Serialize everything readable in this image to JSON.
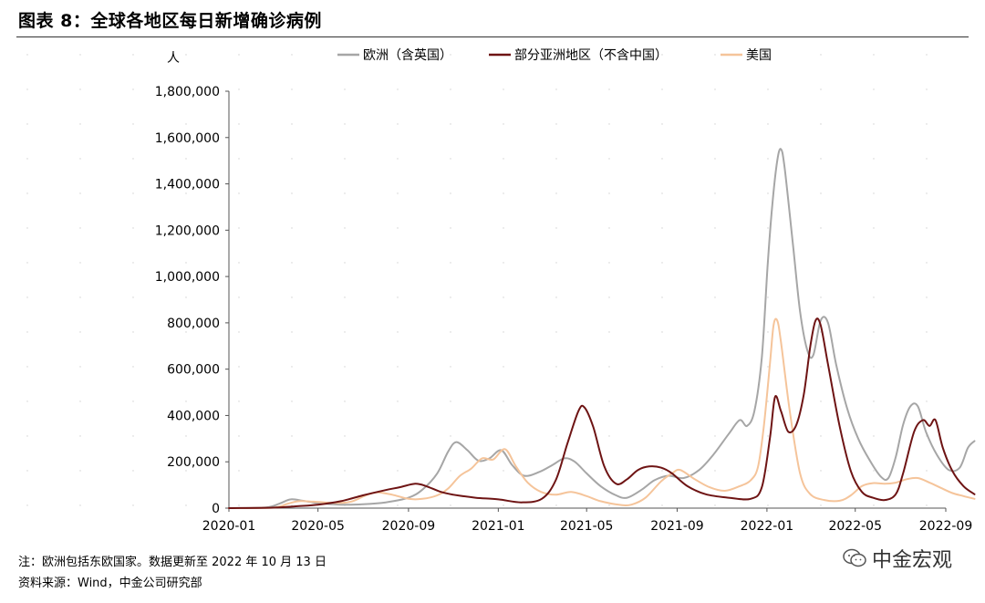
{
  "title": "图表 8：全球各地区每日新增确诊病例",
  "note": "注：欧洲包括东欧国家。数据更新至 2022 年 10 月 13 日",
  "source": "资料来源：Wind，中金公司研究部",
  "watermark": "中金宏观",
  "colors": {
    "europe": "#a6a6a6",
    "asia": "#6e1414",
    "us": "#f5c49a",
    "axis": "#555555"
  },
  "chart_data": {
    "type": "line",
    "ylabel": "人",
    "ylim": [
      0,
      1800000
    ],
    "y_ticks": [
      0,
      200000,
      400000,
      600000,
      800000,
      1000000,
      1200000,
      1400000,
      1600000,
      1800000
    ],
    "y_tick_labels": [
      "0",
      "200,000",
      "400,000",
      "600,000",
      "800,000",
      "1,000,000",
      "1,200,000",
      "1,400,000",
      "1,600,000",
      "1,800,000"
    ],
    "x_ticks": [
      "2020-01",
      "2020-05",
      "2020-09",
      "2021-01",
      "2021-05",
      "2021-09",
      "2022-01",
      "2022-05",
      "2022-09"
    ],
    "x_tick_dates": [
      "2020-01-01",
      "2020-05-01",
      "2020-09-01",
      "2021-01-01",
      "2021-05-01",
      "2021-09-01",
      "2022-01-01",
      "2022-05-01",
      "2022-09-01"
    ],
    "legend_position": "top",
    "series": [
      {
        "name": "欧洲（含英国）",
        "color": "#a6a6a6",
        "points": [
          [
            "2020-01-01",
            0
          ],
          [
            "2020-02-20",
            3000
          ],
          [
            "2020-03-10",
            20000
          ],
          [
            "2020-03-25",
            38000
          ],
          [
            "2020-04-10",
            32000
          ],
          [
            "2020-05-01",
            22000
          ],
          [
            "2020-06-01",
            15000
          ],
          [
            "2020-07-01",
            17000
          ],
          [
            "2020-08-01",
            25000
          ],
          [
            "2020-09-01",
            45000
          ],
          [
            "2020-09-20",
            80000
          ],
          [
            "2020-10-10",
            150000
          ],
          [
            "2020-10-25",
            245000
          ],
          [
            "2020-11-05",
            285000
          ],
          [
            "2020-11-20",
            250000
          ],
          [
            "2020-12-05",
            205000
          ],
          [
            "2020-12-20",
            215000
          ],
          [
            "2021-01-05",
            250000
          ],
          [
            "2021-01-20",
            185000
          ],
          [
            "2021-02-05",
            140000
          ],
          [
            "2021-02-25",
            155000
          ],
          [
            "2021-03-15",
            185000
          ],
          [
            "2021-04-01",
            215000
          ],
          [
            "2021-04-15",
            200000
          ],
          [
            "2021-05-01",
            150000
          ],
          [
            "2021-05-20",
            95000
          ],
          [
            "2021-06-10",
            55000
          ],
          [
            "2021-06-25",
            45000
          ],
          [
            "2021-07-15",
            80000
          ],
          [
            "2021-08-01",
            120000
          ],
          [
            "2021-08-20",
            140000
          ],
          [
            "2021-09-10",
            130000
          ],
          [
            "2021-10-01",
            165000
          ],
          [
            "2021-10-20",
            230000
          ],
          [
            "2021-11-10",
            320000
          ],
          [
            "2021-11-25",
            380000
          ],
          [
            "2021-12-05",
            355000
          ],
          [
            "2021-12-15",
            420000
          ],
          [
            "2021-12-25",
            650000
          ],
          [
            "2022-01-02",
            1050000
          ],
          [
            "2022-01-08",
            1300000
          ],
          [
            "2022-01-15",
            1500000
          ],
          [
            "2022-01-20",
            1550000
          ],
          [
            "2022-01-25",
            1470000
          ],
          [
            "2022-02-05",
            1150000
          ],
          [
            "2022-02-15",
            850000
          ],
          [
            "2022-02-25",
            680000
          ],
          [
            "2022-03-05",
            660000
          ],
          [
            "2022-03-15",
            810000
          ],
          [
            "2022-03-25",
            800000
          ],
          [
            "2022-04-05",
            620000
          ],
          [
            "2022-04-20",
            430000
          ],
          [
            "2022-05-05",
            300000
          ],
          [
            "2022-05-20",
            210000
          ],
          [
            "2022-06-05",
            135000
          ],
          [
            "2022-06-15",
            130000
          ],
          [
            "2022-06-25",
            220000
          ],
          [
            "2022-07-05",
            360000
          ],
          [
            "2022-07-15",
            440000
          ],
          [
            "2022-07-25",
            440000
          ],
          [
            "2022-08-05",
            330000
          ],
          [
            "2022-08-20",
            230000
          ],
          [
            "2022-09-05",
            165000
          ],
          [
            "2022-09-20",
            175000
          ],
          [
            "2022-10-01",
            260000
          ],
          [
            "2022-10-10",
            290000
          ]
        ]
      },
      {
        "name": "部分亚洲地区（不含中国）",
        "color": "#6e1414",
        "points": [
          [
            "2020-01-01",
            0
          ],
          [
            "2020-03-01",
            2000
          ],
          [
            "2020-04-01",
            8000
          ],
          [
            "2020-05-01",
            15000
          ],
          [
            "2020-06-01",
            30000
          ],
          [
            "2020-07-01",
            55000
          ],
          [
            "2020-08-01",
            78000
          ],
          [
            "2020-08-20",
            90000
          ],
          [
            "2020-09-10",
            105000
          ],
          [
            "2020-09-25",
            95000
          ],
          [
            "2020-10-15",
            70000
          ],
          [
            "2020-11-01",
            58000
          ],
          [
            "2020-12-01",
            45000
          ],
          [
            "2021-01-01",
            38000
          ],
          [
            "2021-02-01",
            25000
          ],
          [
            "2021-03-01",
            40000
          ],
          [
            "2021-03-20",
            120000
          ],
          [
            "2021-04-05",
            280000
          ],
          [
            "2021-04-20",
            420000
          ],
          [
            "2021-04-28",
            435000
          ],
          [
            "2021-05-10",
            350000
          ],
          [
            "2021-05-25",
            180000
          ],
          [
            "2021-06-10",
            105000
          ],
          [
            "2021-06-25",
            125000
          ],
          [
            "2021-07-10",
            165000
          ],
          [
            "2021-07-25",
            180000
          ],
          [
            "2021-08-10",
            175000
          ],
          [
            "2021-08-25",
            150000
          ],
          [
            "2021-09-15",
            95000
          ],
          [
            "2021-10-10",
            60000
          ],
          [
            "2021-11-10",
            45000
          ],
          [
            "2021-12-10",
            40000
          ],
          [
            "2021-12-25",
            90000
          ],
          [
            "2022-01-05",
            300000
          ],
          [
            "2022-01-12",
            480000
          ],
          [
            "2022-01-20",
            420000
          ],
          [
            "2022-01-30",
            330000
          ],
          [
            "2022-02-10",
            360000
          ],
          [
            "2022-02-20",
            490000
          ],
          [
            "2022-03-01",
            700000
          ],
          [
            "2022-03-08",
            810000
          ],
          [
            "2022-03-15",
            790000
          ],
          [
            "2022-03-25",
            620000
          ],
          [
            "2022-04-10",
            350000
          ],
          [
            "2022-04-25",
            160000
          ],
          [
            "2022-05-10",
            70000
          ],
          [
            "2022-05-25",
            45000
          ],
          [
            "2022-06-10",
            35000
          ],
          [
            "2022-06-25",
            60000
          ],
          [
            "2022-07-05",
            150000
          ],
          [
            "2022-07-20",
            330000
          ],
          [
            "2022-08-01",
            380000
          ],
          [
            "2022-08-10",
            355000
          ],
          [
            "2022-08-18",
            380000
          ],
          [
            "2022-08-28",
            260000
          ],
          [
            "2022-09-10",
            160000
          ],
          [
            "2022-09-25",
            95000
          ],
          [
            "2022-10-10",
            60000
          ]
        ]
      },
      {
        "name": "美国",
        "color": "#f5c49a",
        "points": [
          [
            "2020-01-01",
            0
          ],
          [
            "2020-03-01",
            2000
          ],
          [
            "2020-03-20",
            18000
          ],
          [
            "2020-04-05",
            30000
          ],
          [
            "2020-04-25",
            28000
          ],
          [
            "2020-05-25",
            22000
          ],
          [
            "2020-06-15",
            28000
          ],
          [
            "2020-07-05",
            55000
          ],
          [
            "2020-07-20",
            68000
          ],
          [
            "2020-08-10",
            58000
          ],
          [
            "2020-09-01",
            40000
          ],
          [
            "2020-09-20",
            40000
          ],
          [
            "2020-10-10",
            55000
          ],
          [
            "2020-10-25",
            85000
          ],
          [
            "2020-11-10",
            140000
          ],
          [
            "2020-11-25",
            170000
          ],
          [
            "2020-12-10",
            215000
          ],
          [
            "2020-12-25",
            210000
          ],
          [
            "2021-01-10",
            255000
          ],
          [
            "2021-01-25",
            180000
          ],
          [
            "2021-02-10",
            110000
          ],
          [
            "2021-02-28",
            70000
          ],
          [
            "2021-03-20",
            58000
          ],
          [
            "2021-04-10",
            70000
          ],
          [
            "2021-05-01",
            52000
          ],
          [
            "2021-05-20",
            30000
          ],
          [
            "2021-06-15",
            14000
          ],
          [
            "2021-07-01",
            15000
          ],
          [
            "2021-07-20",
            45000
          ],
          [
            "2021-08-10",
            115000
          ],
          [
            "2021-08-25",
            150000
          ],
          [
            "2021-09-05",
            165000
          ],
          [
            "2021-09-25",
            125000
          ],
          [
            "2021-10-15",
            90000
          ],
          [
            "2021-11-05",
            75000
          ],
          [
            "2021-11-25",
            95000
          ],
          [
            "2021-12-10",
            120000
          ],
          [
            "2021-12-20",
            180000
          ],
          [
            "2021-12-28",
            360000
          ],
          [
            "2022-01-05",
            620000
          ],
          [
            "2022-01-10",
            790000
          ],
          [
            "2022-01-15",
            810000
          ],
          [
            "2022-01-20",
            720000
          ],
          [
            "2022-02-01",
            420000
          ],
          [
            "2022-02-15",
            150000
          ],
          [
            "2022-03-01",
            60000
          ],
          [
            "2022-03-20",
            35000
          ],
          [
            "2022-04-10",
            32000
          ],
          [
            "2022-04-25",
            55000
          ],
          [
            "2022-05-10",
            95000
          ],
          [
            "2022-05-25",
            108000
          ],
          [
            "2022-06-10",
            105000
          ],
          [
            "2022-06-25",
            110000
          ],
          [
            "2022-07-10",
            125000
          ],
          [
            "2022-07-25",
            130000
          ],
          [
            "2022-08-10",
            110000
          ],
          [
            "2022-08-25",
            88000
          ],
          [
            "2022-09-10",
            65000
          ],
          [
            "2022-09-25",
            52000
          ],
          [
            "2022-10-10",
            40000
          ]
        ]
      }
    ]
  }
}
